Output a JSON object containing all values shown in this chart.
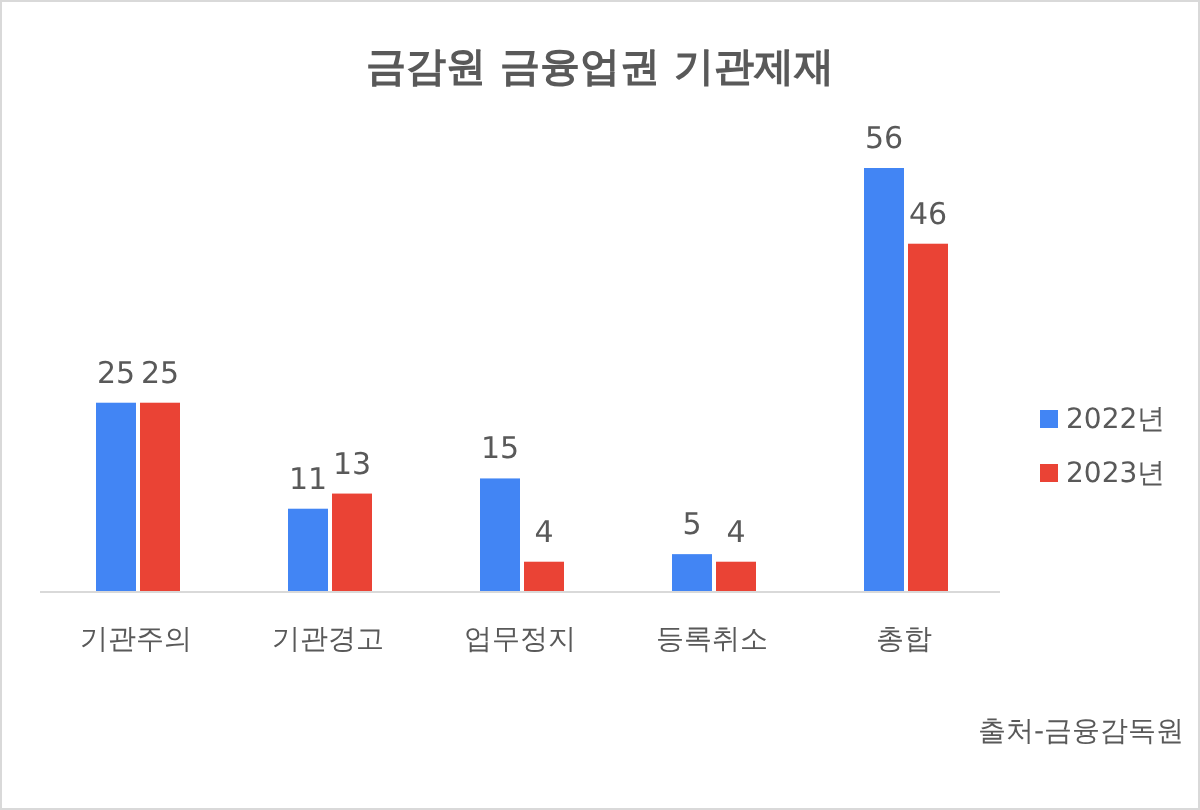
{
  "chart_data": {
    "type": "bar",
    "title": "금감원 금융업권 기관제재",
    "categories": [
      "기관주의",
      "기관경고",
      "업무정지",
      "등록취소",
      "총합"
    ],
    "series": [
      {
        "name": "2022년",
        "color": "#4285f4",
        "values": [
          25,
          11,
          15,
          5,
          56
        ]
      },
      {
        "name": "2023년",
        "color": "#ea4335",
        "values": [
          25,
          13,
          4,
          4,
          46
        ]
      }
    ],
    "data_labels": true,
    "legend": "right",
    "annotations": [
      "출처-금융감독원"
    ]
  }
}
